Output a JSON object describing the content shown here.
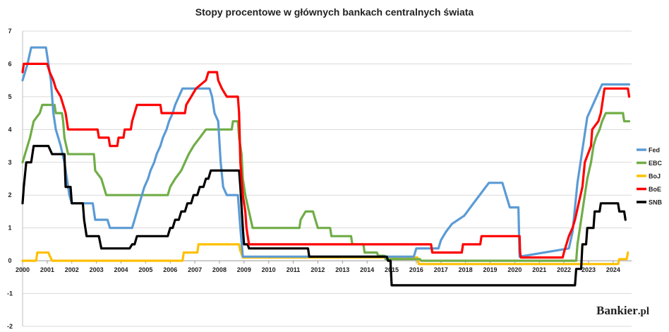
{
  "chart_data": {
    "type": "line",
    "title": "Stopy procentowe w głównych bankach centralnych świata",
    "xlabel": "",
    "ylabel": "",
    "xlim": [
      2000,
      2024.75
    ],
    "ylim": [
      -2,
      7
    ],
    "y_ticks": [
      "-2",
      "-1",
      "0",
      "1",
      "2",
      "3",
      "4",
      "5",
      "6",
      "7"
    ],
    "x_ticks": [
      "2000",
      "2001",
      "2002",
      "2003",
      "2004",
      "2005",
      "2006",
      "2007",
      "2008",
      "2009",
      "2010",
      "2011",
      "2012",
      "2013",
      "2014",
      "2015",
      "2016",
      "2017",
      "2018",
      "2019",
      "2020",
      "2021",
      "2022",
      "2023",
      "2024"
    ],
    "grid": "horizontal",
    "legend_position": "right",
    "series": [
      {
        "name": "Fed",
        "color": "#5b9bd5",
        "points": [
          [
            2000.0,
            5.5
          ],
          [
            2000.1,
            5.75
          ],
          [
            2000.2,
            6.0
          ],
          [
            2000.35,
            6.5
          ],
          [
            2000.95,
            6.5
          ],
          [
            2001.05,
            6.0
          ],
          [
            2001.15,
            5.5
          ],
          [
            2001.25,
            4.5
          ],
          [
            2001.35,
            4.0
          ],
          [
            2001.45,
            3.75
          ],
          [
            2001.55,
            3.5
          ],
          [
            2001.7,
            3.0
          ],
          [
            2001.8,
            2.5
          ],
          [
            2001.9,
            2.0
          ],
          [
            2002.0,
            1.75
          ],
          [
            2002.85,
            1.75
          ],
          [
            2002.95,
            1.25
          ],
          [
            2003.45,
            1.25
          ],
          [
            2003.55,
            1.0
          ],
          [
            2004.45,
            1.0
          ],
          [
            2004.55,
            1.25
          ],
          [
            2004.65,
            1.5
          ],
          [
            2004.75,
            1.75
          ],
          [
            2004.85,
            2.0
          ],
          [
            2004.95,
            2.25
          ],
          [
            2005.1,
            2.5
          ],
          [
            2005.2,
            2.75
          ],
          [
            2005.35,
            3.0
          ],
          [
            2005.45,
            3.25
          ],
          [
            2005.6,
            3.5
          ],
          [
            2005.7,
            3.75
          ],
          [
            2005.85,
            4.0
          ],
          [
            2005.95,
            4.25
          ],
          [
            2006.1,
            4.5
          ],
          [
            2006.2,
            4.75
          ],
          [
            2006.35,
            5.0
          ],
          [
            2006.5,
            5.25
          ],
          [
            2007.6,
            5.25
          ],
          [
            2007.7,
            5.0
          ],
          [
            2007.8,
            4.5
          ],
          [
            2007.95,
            4.25
          ],
          [
            2008.05,
            3.0
          ],
          [
            2008.15,
            2.25
          ],
          [
            2008.3,
            2.0
          ],
          [
            2008.75,
            2.0
          ],
          [
            2008.85,
            1.0
          ],
          [
            2008.95,
            0.125
          ],
          [
            2015.9,
            0.125
          ],
          [
            2016.0,
            0.375
          ],
          [
            2016.9,
            0.375
          ],
          [
            2017.0,
            0.625
          ],
          [
            2017.2,
            0.875
          ],
          [
            2017.45,
            1.125
          ],
          [
            2017.95,
            1.375
          ],
          [
            2018.2,
            1.625
          ],
          [
            2018.45,
            1.875
          ],
          [
            2018.7,
            2.125
          ],
          [
            2018.95,
            2.375
          ],
          [
            2019.5,
            2.375
          ],
          [
            2019.6,
            2.125
          ],
          [
            2019.7,
            1.875
          ],
          [
            2019.8,
            1.625
          ],
          [
            2020.15,
            1.625
          ],
          [
            2020.2,
            0.125
          ],
          [
            2022.2,
            0.375
          ],
          [
            2022.35,
            0.875
          ],
          [
            2022.45,
            1.625
          ],
          [
            2022.55,
            2.375
          ],
          [
            2022.7,
            3.125
          ],
          [
            2022.85,
            3.875
          ],
          [
            2022.95,
            4.375
          ],
          [
            2023.1,
            4.625
          ],
          [
            2023.25,
            4.875
          ],
          [
            2023.4,
            5.125
          ],
          [
            2023.55,
            5.375
          ],
          [
            2024.65,
            5.375
          ]
        ]
      },
      {
        "name": "EBC",
        "color": "#70ad47",
        "points": [
          [
            2000.0,
            3.0
          ],
          [
            2000.1,
            3.25
          ],
          [
            2000.2,
            3.5
          ],
          [
            2000.3,
            3.75
          ],
          [
            2000.45,
            4.25
          ],
          [
            2000.7,
            4.5
          ],
          [
            2000.8,
            4.75
          ],
          [
            2001.3,
            4.75
          ],
          [
            2001.35,
            4.5
          ],
          [
            2001.6,
            4.5
          ],
          [
            2001.65,
            4.25
          ],
          [
            2001.7,
            3.75
          ],
          [
            2001.85,
            3.25
          ],
          [
            2002.9,
            3.25
          ],
          [
            2002.95,
            2.75
          ],
          [
            2003.2,
            2.5
          ],
          [
            2003.4,
            2.0
          ],
          [
            2005.9,
            2.0
          ],
          [
            2006.0,
            2.25
          ],
          [
            2006.2,
            2.5
          ],
          [
            2006.45,
            2.75
          ],
          [
            2006.6,
            3.0
          ],
          [
            2006.75,
            3.25
          ],
          [
            2006.95,
            3.5
          ],
          [
            2007.2,
            3.75
          ],
          [
            2007.45,
            4.0
          ],
          [
            2008.5,
            4.0
          ],
          [
            2008.55,
            4.25
          ],
          [
            2008.75,
            4.25
          ],
          [
            2008.8,
            3.75
          ],
          [
            2008.9,
            3.25
          ],
          [
            2008.95,
            2.5
          ],
          [
            2009.05,
            2.0
          ],
          [
            2009.2,
            1.5
          ],
          [
            2009.35,
            1.0
          ],
          [
            2011.25,
            1.0
          ],
          [
            2011.3,
            1.25
          ],
          [
            2011.5,
            1.5
          ],
          [
            2011.8,
            1.5
          ],
          [
            2011.9,
            1.25
          ],
          [
            2012.0,
            1.0
          ],
          [
            2012.5,
            1.0
          ],
          [
            2012.55,
            0.75
          ],
          [
            2013.35,
            0.75
          ],
          [
            2013.4,
            0.5
          ],
          [
            2013.85,
            0.5
          ],
          [
            2013.9,
            0.25
          ],
          [
            2014.4,
            0.25
          ],
          [
            2014.45,
            0.15
          ],
          [
            2014.7,
            0.15
          ],
          [
            2014.75,
            0.05
          ],
          [
            2016.15,
            0.05
          ],
          [
            2016.2,
            0.0
          ],
          [
            2022.5,
            0.0
          ],
          [
            2022.55,
            0.5
          ],
          [
            2022.7,
            1.25
          ],
          [
            2022.85,
            2.0
          ],
          [
            2022.95,
            2.5
          ],
          [
            2023.1,
            3.0
          ],
          [
            2023.2,
            3.5
          ],
          [
            2023.3,
            3.75
          ],
          [
            2023.45,
            4.0
          ],
          [
            2023.55,
            4.25
          ],
          [
            2023.7,
            4.5
          ],
          [
            2024.4,
            4.5
          ],
          [
            2024.45,
            4.25
          ],
          [
            2024.65,
            4.25
          ]
        ]
      },
      {
        "name": "BoJ",
        "color": "#ffc000",
        "points": [
          [
            2000.0,
            0.0
          ],
          [
            2000.55,
            0.0
          ],
          [
            2000.6,
            0.25
          ],
          [
            2001.05,
            0.25
          ],
          [
            2001.1,
            0.15
          ],
          [
            2001.2,
            0.0
          ],
          [
            2006.5,
            0.0
          ],
          [
            2006.55,
            0.25
          ],
          [
            2007.1,
            0.25
          ],
          [
            2007.15,
            0.5
          ],
          [
            2008.8,
            0.5
          ],
          [
            2008.85,
            0.3
          ],
          [
            2008.95,
            0.1
          ],
          [
            2016.05,
            0.1
          ],
          [
            2016.1,
            -0.1
          ],
          [
            2024.2,
            -0.1
          ],
          [
            2024.25,
            0.05
          ],
          [
            2024.55,
            0.05
          ],
          [
            2024.6,
            0.25
          ]
        ]
      },
      {
        "name": "BoE",
        "color": "#ff0000",
        "points": [
          [
            2000.0,
            5.75
          ],
          [
            2000.05,
            6.0
          ],
          [
            2001.0,
            6.0
          ],
          [
            2001.1,
            5.75
          ],
          [
            2001.25,
            5.5
          ],
          [
            2001.35,
            5.25
          ],
          [
            2001.55,
            5.0
          ],
          [
            2001.65,
            4.75
          ],
          [
            2001.75,
            4.5
          ],
          [
            2001.85,
            4.0
          ],
          [
            2003.05,
            4.0
          ],
          [
            2003.1,
            3.75
          ],
          [
            2003.5,
            3.75
          ],
          [
            2003.55,
            3.5
          ],
          [
            2003.85,
            3.5
          ],
          [
            2003.9,
            3.75
          ],
          [
            2004.1,
            3.75
          ],
          [
            2004.15,
            4.0
          ],
          [
            2004.4,
            4.0
          ],
          [
            2004.45,
            4.25
          ],
          [
            2004.55,
            4.5
          ],
          [
            2004.65,
            4.75
          ],
          [
            2005.6,
            4.75
          ],
          [
            2005.65,
            4.5
          ],
          [
            2006.6,
            4.5
          ],
          [
            2006.65,
            4.75
          ],
          [
            2006.85,
            5.0
          ],
          [
            2007.05,
            5.25
          ],
          [
            2007.45,
            5.5
          ],
          [
            2007.55,
            5.75
          ],
          [
            2007.9,
            5.75
          ],
          [
            2007.95,
            5.5
          ],
          [
            2008.1,
            5.25
          ],
          [
            2008.3,
            5.0
          ],
          [
            2008.75,
            5.0
          ],
          [
            2008.8,
            4.5
          ],
          [
            2008.85,
            3.0
          ],
          [
            2008.95,
            2.0
          ],
          [
            2009.05,
            1.5
          ],
          [
            2009.1,
            1.0
          ],
          [
            2009.2,
            0.5
          ],
          [
            2016.6,
            0.5
          ],
          [
            2016.65,
            0.25
          ],
          [
            2017.85,
            0.25
          ],
          [
            2017.9,
            0.5
          ],
          [
            2018.6,
            0.5
          ],
          [
            2018.65,
            0.75
          ],
          [
            2020.2,
            0.75
          ],
          [
            2020.22,
            0.25
          ],
          [
            2020.25,
            0.1
          ],
          [
            2021.95,
            0.1
          ],
          [
            2022.0,
            0.25
          ],
          [
            2022.1,
            0.5
          ],
          [
            2022.2,
            0.75
          ],
          [
            2022.35,
            1.0
          ],
          [
            2022.45,
            1.25
          ],
          [
            2022.6,
            1.75
          ],
          [
            2022.75,
            2.25
          ],
          [
            2022.85,
            3.0
          ],
          [
            2023.1,
            3.5
          ],
          [
            2023.15,
            4.0
          ],
          [
            2023.4,
            4.25
          ],
          [
            2023.5,
            4.5
          ],
          [
            2023.6,
            5.0
          ],
          [
            2023.65,
            5.25
          ],
          [
            2024.6,
            5.25
          ],
          [
            2024.65,
            5.0
          ]
        ]
      },
      {
        "name": "SNB",
        "color": "#000000",
        "points": [
          [
            2000.0,
            1.75
          ],
          [
            2000.05,
            2.25
          ],
          [
            2000.15,
            3.0
          ],
          [
            2000.35,
            3.0
          ],
          [
            2000.45,
            3.5
          ],
          [
            2001.05,
            3.5
          ],
          [
            2001.2,
            3.25
          ],
          [
            2001.7,
            3.25
          ],
          [
            2001.75,
            2.25
          ],
          [
            2001.95,
            2.25
          ],
          [
            2002.0,
            1.75
          ],
          [
            2002.45,
            1.75
          ],
          [
            2002.5,
            1.25
          ],
          [
            2002.6,
            0.75
          ],
          [
            2003.1,
            0.75
          ],
          [
            2003.2,
            0.375
          ],
          [
            2004.35,
            0.375
          ],
          [
            2004.45,
            0.5
          ],
          [
            2004.55,
            0.5
          ],
          [
            2004.65,
            0.75
          ],
          [
            2005.9,
            0.75
          ],
          [
            2006.0,
            1.0
          ],
          [
            2006.1,
            1.0
          ],
          [
            2006.2,
            1.25
          ],
          [
            2006.35,
            1.25
          ],
          [
            2006.45,
            1.5
          ],
          [
            2006.6,
            1.5
          ],
          [
            2006.7,
            1.75
          ],
          [
            2006.85,
            1.75
          ],
          [
            2006.95,
            2.0
          ],
          [
            2007.1,
            2.0
          ],
          [
            2007.2,
            2.25
          ],
          [
            2007.35,
            2.25
          ],
          [
            2007.45,
            2.5
          ],
          [
            2007.55,
            2.5
          ],
          [
            2007.65,
            2.75
          ],
          [
            2008.8,
            2.75
          ],
          [
            2008.85,
            2.25
          ],
          [
            2008.95,
            1.0
          ],
          [
            2009.0,
            0.5
          ],
          [
            2009.15,
            0.5
          ],
          [
            2009.2,
            0.375
          ],
          [
            2011.6,
            0.375
          ],
          [
            2011.65,
            0.125
          ],
          [
            2014.8,
            0.125
          ],
          [
            2014.85,
            0.0
          ],
          [
            2014.95,
            0.0
          ],
          [
            2015.0,
            -0.75
          ],
          [
            2022.45,
            -0.75
          ],
          [
            2022.5,
            -0.25
          ],
          [
            2022.7,
            -0.25
          ],
          [
            2022.75,
            0.5
          ],
          [
            2022.9,
            0.5
          ],
          [
            2022.95,
            1.0
          ],
          [
            2023.2,
            1.0
          ],
          [
            2023.25,
            1.5
          ],
          [
            2023.45,
            1.5
          ],
          [
            2023.5,
            1.75
          ],
          [
            2024.2,
            1.75
          ],
          [
            2024.25,
            1.5
          ],
          [
            2024.45,
            1.5
          ],
          [
            2024.5,
            1.25
          ]
        ]
      }
    ]
  },
  "brand": {
    "name": "Bankier",
    "suffix": ".pl"
  }
}
